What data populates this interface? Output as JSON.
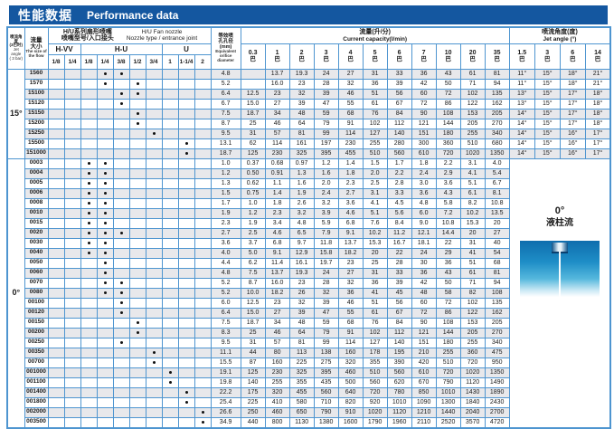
{
  "colors": {
    "accent_blue": "#1457a0",
    "grid_blue": "#4e95d0",
    "row_alt": "#e8e8eb"
  },
  "title": {
    "zh": "性能数据",
    "en": "Performance data"
  },
  "header": {
    "jet_angle_col": {
      "zh1": "喷流角度",
      "zh2": "(3巴时)",
      "en1": "Jet angle",
      "en2": "( 3 bar)"
    },
    "flow_col": {
      "zh1": "流量",
      "zh2": "大小",
      "en": "The size of the flow"
    },
    "nozzle_group": {
      "zh1": "H/U系列扇形喷嘴",
      "zh2": "喷嘴型号/入口接头",
      "en1": "H/U  Fan nozzle",
      "en2": "Nozzle type / entrance joint"
    },
    "nozzle_families": [
      {
        "label": "H-VV",
        "sizes": [
          "1/8",
          "1/4"
        ]
      },
      {
        "label": "H-U",
        "sizes": [
          "1/8",
          "1/4",
          "3/8",
          "1/2",
          "3/4"
        ]
      },
      {
        "label": "U",
        "sizes": [
          "1",
          "1-1/4",
          "2"
        ]
      }
    ],
    "orifice_col": {
      "zh1": "等效喷",
      "zh2": "孔孔径",
      "zh3": "(mm)",
      "en": "Equivalent orifice diameter"
    },
    "capacity_group": {
      "zh": "流量(升/分)",
      "en": "Current capacity(l/min)"
    },
    "pressures": [
      "0.3",
      "1",
      "2",
      "3",
      "4",
      "5",
      "6",
      "7",
      "10",
      "20",
      "35"
    ],
    "pressure_unit": "巴",
    "angle_group": {
      "zh": "喷流角度(度)",
      "en": "Jet angle (°)"
    },
    "angle_pressures": [
      "1.5",
      "3",
      "6",
      "14"
    ]
  },
  "groups": [
    {
      "angle": "15°",
      "rows": [
        {
          "flow": "1560",
          "joints": [
            3,
            4
          ],
          "orifice": "4.8",
          "capacity": [
            "",
            "13.7",
            "19.3",
            "24",
            "27",
            "31",
            "33",
            "36",
            "43",
            "61",
            "81"
          ],
          "angles": [
            "11°",
            "15°",
            "18°",
            "21°"
          ]
        },
        {
          "flow": "1570",
          "joints": [
            3,
            5
          ],
          "orifice": "5.2",
          "capacity": [
            "",
            "16.0",
            "23",
            "28",
            "32",
            "36",
            "39",
            "42",
            "50",
            "71",
            "94"
          ],
          "angles": [
            "11°",
            "15°",
            "18°",
            "21°"
          ]
        },
        {
          "flow": "15100",
          "joints": [
            4,
            5
          ],
          "orifice": "6.4",
          "capacity": [
            "12.5",
            "23",
            "32",
            "39",
            "46",
            "51",
            "56",
            "60",
            "72",
            "102",
            "135"
          ],
          "angles": [
            "13°",
            "15°",
            "17°",
            "18°"
          ]
        },
        {
          "flow": "15120",
          "joints": [
            4
          ],
          "orifice": "6.7",
          "capacity": [
            "15.0",
            "27",
            "39",
            "47",
            "55",
            "61",
            "67",
            "72",
            "86",
            "122",
            "162"
          ],
          "angles": [
            "13°",
            "15°",
            "17°",
            "18°"
          ]
        },
        {
          "flow": "15150",
          "joints": [
            5
          ],
          "orifice": "7.5",
          "capacity": [
            "18.7",
            "34",
            "48",
            "59",
            "68",
            "76",
            "84",
            "90",
            "108",
            "153",
            "205"
          ],
          "angles": [
            "14°",
            "15°",
            "17°",
            "18°"
          ]
        },
        {
          "flow": "15200",
          "joints": [
            5
          ],
          "orifice": "8.7",
          "capacity": [
            "25",
            "46",
            "64",
            "79",
            "91",
            "102",
            "112",
            "121",
            "144",
            "205",
            "270"
          ],
          "angles": [
            "14°",
            "15°",
            "17°",
            "18°"
          ]
        },
        {
          "flow": "15250",
          "joints": [
            6
          ],
          "orifice": "9.5",
          "capacity": [
            "31",
            "57",
            "81",
            "99",
            "114",
            "127",
            "140",
            "151",
            "180",
            "255",
            "340"
          ],
          "angles": [
            "14°",
            "15°",
            "16°",
            "17°"
          ]
        },
        {
          "flow": "15500",
          "joints": [
            8
          ],
          "orifice": "13.1",
          "capacity": [
            "62",
            "114",
            "161",
            "197",
            "230",
            "255",
            "280",
            "300",
            "360",
            "510",
            "680"
          ],
          "angles": [
            "14°",
            "15°",
            "16°",
            "17°"
          ]
        },
        {
          "flow": "151000",
          "joints": [
            8
          ],
          "orifice": "18.7",
          "capacity": [
            "125",
            "230",
            "325",
            "395",
            "455",
            "510",
            "560",
            "610",
            "720",
            "1020",
            "1350"
          ],
          "angles": [
            "14°",
            "15°",
            "16°",
            "17°"
          ]
        }
      ]
    },
    {
      "angle": "0°",
      "stream": {
        "line1": "0°",
        "line2": "液柱流"
      },
      "rows": [
        {
          "flow": "0003",
          "joints": [
            2,
            3
          ],
          "orifice": "1.0",
          "capacity": [
            "0.37",
            "0.68",
            "0.97",
            "1.2",
            "1.4",
            "1.5",
            "1.7",
            "1.8",
            "2.2",
            "3.1",
            "4.0"
          ]
        },
        {
          "flow": "0004",
          "joints": [
            2,
            3
          ],
          "orifice": "1.2",
          "capacity": [
            "0.50",
            "0.91",
            "1.3",
            "1.6",
            "1.8",
            "2.0",
            "2.2",
            "2.4",
            "2.9",
            "4.1",
            "5.4"
          ]
        },
        {
          "flow": "0005",
          "joints": [
            2,
            3
          ],
          "orifice": "1.3",
          "capacity": [
            "0.62",
            "1.1",
            "1.6",
            "2.0",
            "2.3",
            "2.5",
            "2.8",
            "3.0",
            "3.6",
            "5.1",
            "6.7"
          ]
        },
        {
          "flow": "0006",
          "joints": [
            2,
            3
          ],
          "orifice": "1.5",
          "capacity": [
            "0.75",
            "1.4",
            "1.9",
            "2.4",
            "2.7",
            "3.1",
            "3.3",
            "3.6",
            "4.3",
            "6.1",
            "8.1"
          ]
        },
        {
          "flow": "0008",
          "joints": [
            2,
            3
          ],
          "orifice": "1.7",
          "capacity": [
            "1.0",
            "1.8",
            "2.6",
            "3.2",
            "3.6",
            "4.1",
            "4.5",
            "4.8",
            "5.8",
            "8.2",
            "10.8"
          ]
        },
        {
          "flow": "0010",
          "joints": [
            2,
            3
          ],
          "orifice": "1.9",
          "capacity": [
            "1.2",
            "2.3",
            "3.2",
            "3.9",
            "4.6",
            "5.1",
            "5.6",
            "6.0",
            "7.2",
            "10.2",
            "13.5"
          ]
        },
        {
          "flow": "0015",
          "joints": [
            2,
            3
          ],
          "orifice": "2.3",
          "capacity": [
            "1.9",
            "3.4",
            "4.8",
            "5.9",
            "6.8",
            "7.6",
            "8.4",
            "9.0",
            "10.8",
            "15.3",
            "20"
          ]
        },
        {
          "flow": "0020",
          "joints": [
            2,
            3,
            4
          ],
          "orifice": "2.7",
          "capacity": [
            "2.5",
            "4.6",
            "6.5",
            "7.9",
            "9.1",
            "10.2",
            "11.2",
            "12.1",
            "14.4",
            "20",
            "27"
          ]
        },
        {
          "flow": "0030",
          "joints": [
            2,
            3
          ],
          "orifice": "3.6",
          "capacity": [
            "3.7",
            "6.8",
            "9.7",
            "11.8",
            "13.7",
            "15.3",
            "16.7",
            "18.1",
            "22",
            "31",
            "40"
          ]
        },
        {
          "flow": "0040",
          "joints": [
            2,
            3
          ],
          "orifice": "4.0",
          "capacity": [
            "5.0",
            "9.1",
            "12.9",
            "15.8",
            "18.2",
            "20",
            "22",
            "24",
            "29",
            "41",
            "54"
          ]
        },
        {
          "flow": "0050",
          "joints": [
            3
          ],
          "orifice": "4.4",
          "capacity": [
            "6.2",
            "11.4",
            "16.1",
            "19.7",
            "23",
            "25",
            "28",
            "30",
            "36",
            "51",
            "68"
          ]
        },
        {
          "flow": "0060",
          "joints": [
            3
          ],
          "orifice": "4.8",
          "capacity": [
            "7.5",
            "13.7",
            "19.3",
            "24",
            "27",
            "31",
            "33",
            "36",
            "43",
            "61",
            "81"
          ]
        },
        {
          "flow": "0070",
          "joints": [
            3,
            4
          ],
          "orifice": "5.2",
          "capacity": [
            "8.7",
            "16.0",
            "23",
            "28",
            "32",
            "36",
            "39",
            "42",
            "50",
            "71",
            "94"
          ]
        },
        {
          "flow": "0080",
          "joints": [
            3,
            4
          ],
          "orifice": "5.2",
          "capacity": [
            "10.0",
            "18.2",
            "26",
            "32",
            "36",
            "41",
            "45",
            "48",
            "58",
            "82",
            "108"
          ]
        },
        {
          "flow": "00100",
          "joints": [
            4
          ],
          "orifice": "6.0",
          "capacity": [
            "12.5",
            "23",
            "32",
            "39",
            "46",
            "51",
            "56",
            "60",
            "72",
            "102",
            "135"
          ]
        },
        {
          "flow": "00120",
          "joints": [
            4
          ],
          "orifice": "6.4",
          "capacity": [
            "15.0",
            "27",
            "39",
            "47",
            "55",
            "61",
            "67",
            "72",
            "86",
            "122",
            "162"
          ]
        },
        {
          "flow": "00150",
          "joints": [
            5
          ],
          "orifice": "7.5",
          "capacity": [
            "18.7",
            "34",
            "48",
            "59",
            "68",
            "76",
            "84",
            "90",
            "108",
            "153",
            "205"
          ]
        },
        {
          "flow": "00200",
          "joints": [
            5
          ],
          "orifice": "8.3",
          "capacity": [
            "25",
            "46",
            "64",
            "79",
            "91",
            "102",
            "112",
            "121",
            "144",
            "205",
            "270"
          ]
        },
        {
          "flow": "00250",
          "joints": [
            4
          ],
          "orifice": "9.5",
          "capacity": [
            "31",
            "57",
            "81",
            "99",
            "114",
            "127",
            "140",
            "151",
            "180",
            "255",
            "340"
          ]
        },
        {
          "flow": "00350",
          "joints": [
            6
          ],
          "orifice": "11.1",
          "capacity": [
            "44",
            "80",
            "113",
            "138",
            "160",
            "178",
            "195",
            "210",
            "255",
            "360",
            "475"
          ]
        },
        {
          "flow": "00700",
          "joints": [
            6
          ],
          "orifice": "15.5",
          "capacity": [
            "87",
            "160",
            "225",
            "275",
            "320",
            "355",
            "390",
            "420",
            "510",
            "720",
            "950"
          ]
        },
        {
          "flow": "001000",
          "joints": [
            7
          ],
          "orifice": "19.1",
          "capacity": [
            "125",
            "230",
            "325",
            "395",
            "460",
            "510",
            "560",
            "610",
            "720",
            "1020",
            "1350"
          ]
        },
        {
          "flow": "001100",
          "joints": [
            7
          ],
          "orifice": "19.8",
          "capacity": [
            "140",
            "255",
            "355",
            "435",
            "500",
            "560",
            "620",
            "670",
            "790",
            "1120",
            "1490"
          ]
        },
        {
          "flow": "001400",
          "joints": [
            8
          ],
          "orifice": "22.2",
          "capacity": [
            "175",
            "320",
            "455",
            "560",
            "640",
            "720",
            "780",
            "850",
            "1010",
            "1430",
            "1890"
          ]
        },
        {
          "flow": "001800",
          "joints": [
            8
          ],
          "orifice": "25.4",
          "capacity": [
            "225",
            "410",
            "580",
            "710",
            "820",
            "920",
            "1010",
            "1090",
            "1300",
            "1840",
            "2430"
          ]
        },
        {
          "flow": "002000",
          "joints": [
            9
          ],
          "orifice": "26.6",
          "capacity": [
            "250",
            "460",
            "650",
            "790",
            "910",
            "1020",
            "1120",
            "1210",
            "1440",
            "2040",
            "2700"
          ]
        },
        {
          "flow": "003500",
          "joints": [
            9
          ],
          "orifice": "34.9",
          "capacity": [
            "440",
            "800",
            "1130",
            "1380",
            "1600",
            "1790",
            "1960",
            "2110",
            "2520",
            "3570",
            "4720"
          ]
        }
      ]
    }
  ]
}
